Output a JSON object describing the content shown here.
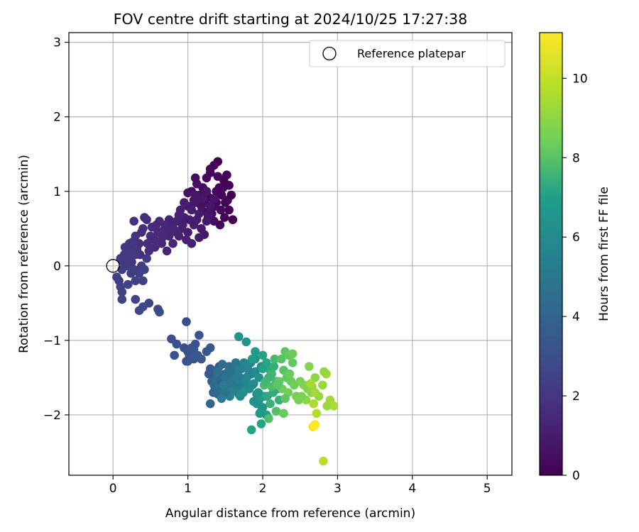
{
  "chart_data": {
    "type": "scatter",
    "title": "FOV centre drift starting at 2024/10/25 17:27:38",
    "xlabel": "Angular distance from reference (arcmin)",
    "ylabel": "Rotation from reference (arcmin)",
    "xlim": [
      -0.59,
      5.33
    ],
    "ylim": [
      -2.81,
      3.13
    ],
    "xticks": [
      0,
      1,
      2,
      3,
      4,
      5
    ],
    "yticks": [
      -2,
      -1,
      0,
      1,
      2,
      3
    ],
    "xtick_labels": [
      "0",
      "1",
      "2",
      "3",
      "4",
      "5"
    ],
    "ytick_labels": [
      "−2",
      "−1",
      "0",
      "1",
      "2",
      "3"
    ],
    "grid": true,
    "legend": {
      "placement": "top-right",
      "entries": [
        {
          "label": "Reference platepar",
          "marker": "open-circle"
        }
      ]
    },
    "reference_point": {
      "x": 0,
      "y": 0
    },
    "colorbar": {
      "label": "Hours from first FF file",
      "colormap": "viridis",
      "range": [
        0,
        11.15
      ],
      "ticks": [
        0,
        2,
        4,
        6,
        8,
        10
      ],
      "tick_labels": [
        "0",
        "2",
        "4",
        "6",
        "8",
        "10"
      ]
    },
    "series": [
      {
        "x": [
          1.4,
          1.35,
          1.52,
          1.48,
          1.3,
          1.42,
          1.55,
          1.38,
          1.25,
          1.45,
          1.33,
          1.5,
          1.58,
          1.28,
          1.36,
          1.44,
          1.49,
          1.32,
          1.2,
          1.1,
          1.05,
          1.15,
          1.22,
          1.55,
          1.6,
          1.25,
          1.18,
          1.3,
          1.4,
          1.47,
          1.12,
          1.0,
          1.08,
          1.35,
          1.43,
          1.53,
          1.27,
          1.38
        ],
        "y": [
          1.4,
          1.35,
          1.22,
          1.15,
          1.25,
          1.05,
          1.08,
          1.0,
          1.18,
          0.95,
          0.9,
          0.85,
          0.95,
          0.92,
          0.8,
          0.75,
          0.65,
          0.7,
          1.05,
          1.18,
          1.0,
          0.95,
          0.85,
          0.75,
          0.62,
          0.72,
          0.8,
          1.3,
          1.2,
          1.05,
          1.1,
          0.98,
          0.88,
          0.6,
          0.55,
          0.88,
          0.65,
          0.85
        ],
        "c": [
          0.05,
          0.1,
          0.08,
          0.15,
          0.2,
          0.12,
          0.18,
          0.25,
          0.3,
          0.22,
          0.28,
          0.14,
          0.06,
          0.35,
          0.4,
          0.32,
          0.24,
          0.45,
          0.38,
          0.42,
          0.5,
          0.55,
          0.48,
          0.16,
          0.09,
          0.52,
          0.58,
          0.26,
          0.33,
          0.21,
          0.6,
          0.65,
          0.62,
          0.44,
          0.36,
          0.11,
          0.46,
          0.3
        ]
      },
      {
        "x": [
          1.2,
          1.1,
          1.0,
          1.15,
          1.05,
          0.95,
          1.25,
          1.3,
          0.9,
          0.85,
          1.08,
          1.18,
          1.22,
          1.0,
          0.92,
          0.88,
          0.8,
          1.12,
          1.28,
          1.02,
          0.98,
          1.35,
          0.95,
          1.05,
          0.75,
          0.82,
          1.15,
          1.25,
          0.88,
          0.7,
          1.1,
          0.93
        ],
        "y": [
          0.9,
          0.85,
          0.8,
          0.7,
          0.75,
          0.65,
          0.6,
          0.8,
          0.75,
          0.6,
          0.55,
          0.5,
          0.42,
          0.45,
          0.5,
          0.4,
          0.55,
          0.62,
          0.7,
          0.62,
          0.35,
          0.9,
          0.85,
          0.3,
          0.62,
          0.48,
          0.38,
          1.0,
          0.68,
          0.5,
          0.95,
          0.55
        ],
        "c": [
          0.8,
          0.85,
          0.9,
          0.95,
          1.0,
          1.05,
          0.88,
          0.78,
          1.1,
          1.15,
          1.02,
          0.92,
          0.86,
          1.08,
          1.12,
          1.18,
          1.22,
          0.98,
          0.82,
          1.06,
          1.2,
          0.72,
          1.14,
          1.16,
          1.25,
          1.28,
          0.96,
          0.76,
          1.24,
          1.3,
          0.84,
          1.1
        ]
      },
      {
        "x": [
          0.7,
          0.6,
          0.5,
          0.4,
          0.3,
          0.45,
          0.55,
          0.65,
          0.75,
          0.35,
          0.25,
          0.48,
          0.58,
          0.68,
          0.38,
          0.28,
          0.8,
          0.72,
          0.62,
          0.52,
          0.42,
          0.32,
          0.85,
          0.22,
          0.18,
          0.78,
          0.66,
          0.56,
          0.46,
          0.36
        ],
        "y": [
          0.55,
          0.45,
          0.4,
          0.5,
          0.4,
          0.62,
          0.35,
          0.3,
          0.4,
          0.3,
          0.25,
          0.2,
          0.55,
          0.48,
          0.45,
          0.6,
          0.3,
          0.2,
          0.6,
          0.52,
          0.65,
          0.25,
          0.45,
          0.3,
          0.2,
          0.5,
          0.38,
          0.25,
          0.3,
          0.15
        ],
        "c": [
          1.4,
          1.5,
          1.6,
          1.7,
          1.8,
          1.65,
          1.55,
          1.45,
          1.35,
          1.75,
          1.85,
          1.62,
          1.52,
          1.42,
          1.72,
          1.82,
          1.32,
          1.38,
          1.48,
          1.58,
          1.68,
          1.78,
          1.3,
          1.88,
          1.92,
          1.36,
          1.46,
          1.56,
          1.66,
          1.76
        ]
      },
      {
        "x": [
          0.2,
          0.15,
          0.1,
          0.25,
          0.3,
          0.12,
          0.18,
          0.35,
          0.22,
          0.08,
          0.28,
          0.05,
          0.4,
          0.14,
          0.24,
          0.32,
          0.45,
          0.1,
          0.16,
          0.26,
          0.2,
          0.38,
          0.3,
          0.12,
          0.42,
          0.22
        ],
        "y": [
          0.2,
          0.15,
          0.1,
          0.05,
          0.15,
          -0.05,
          0.0,
          -0.1,
          0.1,
          -0.2,
          -0.05,
          -0.15,
          -0.2,
          0.05,
          -0.1,
          0.22,
          0.1,
          -0.28,
          0.25,
          0.32,
          -0.25,
          0.0,
          -0.2,
          -0.35,
          -0.05,
          0.3
        ],
        "c": [
          2.0,
          2.1,
          2.2,
          2.05,
          2.15,
          2.25,
          2.18,
          2.35,
          2.08,
          2.3,
          2.28,
          2.32,
          2.4,
          2.12,
          2.22,
          2.02,
          2.2,
          2.38,
          1.98,
          1.95,
          2.42,
          2.26,
          2.44,
          2.46,
          2.34,
          2.0
        ]
      },
      {
        "x": [
          0.12,
          0.48,
          0.3,
          0.4,
          0.6,
          0.62,
          0.35
        ],
        "y": [
          -0.45,
          -0.5,
          -0.45,
          -0.55,
          -0.58,
          -0.62,
          -0.6
        ],
        "c": [
          2.5,
          2.6,
          2.55,
          2.7,
          2.8,
          2.85,
          2.75
        ]
      },
      {
        "x": [
          0.98,
          0.78,
          0.85,
          0.82,
          0.95,
          1.05,
          1.0,
          1.1,
          1.15,
          1.02,
          0.98,
          1.08,
          1.13,
          1.18,
          1.25,
          1.3,
          1.0,
          1.08
        ],
        "y": [
          -0.75,
          -0.98,
          -1.05,
          -1.2,
          -1.1,
          -1.1,
          -1.15,
          -1.05,
          -0.93,
          -1.2,
          -1.28,
          -1.12,
          -1.2,
          -1.25,
          -1.15,
          -1.1,
          -1.28,
          -1.25
        ],
        "c": [
          2.95,
          3.0,
          3.05,
          3.1,
          3.12,
          3.18,
          3.15,
          3.22,
          3.25,
          3.2,
          3.28,
          3.3,
          3.35,
          3.38,
          3.4,
          3.45,
          3.32,
          3.42
        ]
      },
      {
        "x": [
          1.3,
          1.35,
          1.4,
          1.45,
          1.38,
          1.32,
          1.5,
          1.42,
          1.28,
          1.36,
          1.48,
          1.34,
          1.3,
          1.4,
          1.44,
          1.55,
          1.38,
          1.46,
          1.52,
          1.42,
          1.35,
          1.4
        ],
        "y": [
          -1.38,
          -1.45,
          -1.55,
          -1.48,
          -1.4,
          -1.55,
          -1.45,
          -1.35,
          -1.45,
          -1.62,
          -1.6,
          -1.7,
          -1.85,
          -1.72,
          -1.65,
          -1.52,
          -1.5,
          -1.32,
          -1.58,
          -1.68,
          -1.6,
          -1.42
        ],
        "c": [
          3.5,
          3.55,
          3.6,
          3.65,
          3.7,
          3.75,
          3.8,
          3.85,
          3.58,
          3.9,
          3.95,
          4.0,
          4.05,
          4.1,
          4.15,
          4.2,
          4.25,
          4.3,
          4.35,
          4.4,
          4.45,
          4.5
        ]
      },
      {
        "x": [
          1.55,
          1.6,
          1.5,
          1.65,
          1.58,
          1.62,
          1.52,
          1.7,
          1.48,
          1.56,
          1.6,
          1.66,
          1.54,
          1.5,
          1.64,
          1.58,
          1.68,
          1.45,
          1.72
        ],
        "y": [
          -1.35,
          -1.45,
          -1.5,
          -1.4,
          -1.6,
          -1.55,
          -1.65,
          -1.5,
          -1.6,
          -1.75,
          -1.68,
          -1.6,
          -1.42,
          -1.7,
          -1.3,
          -1.52,
          -1.72,
          -1.78,
          -1.38
        ],
        "c": [
          4.5,
          4.6,
          4.7,
          4.8,
          4.9,
          5.0,
          5.1,
          5.2,
          5.3,
          5.4,
          5.5,
          4.55,
          4.65,
          4.75,
          4.85,
          4.95,
          5.05,
          5.15,
          5.25
        ]
      },
      {
        "x": [
          1.65,
          1.75,
          1.8,
          1.85,
          1.9,
          1.78,
          1.7,
          1.82,
          1.88,
          1.95,
          1.72,
          1.76,
          1.92,
          1.68,
          1.84,
          1.98,
          1.8,
          1.74,
          1.86,
          1.9,
          1.7,
          1.66
        ],
        "y": [
          -1.5,
          -1.3,
          -1.38,
          -1.45,
          -1.42,
          -1.55,
          -1.75,
          -1.65,
          -1.58,
          -1.5,
          -1.68,
          -1.6,
          -1.72,
          -1.4,
          -1.3,
          -1.35,
          -1.48,
          -1.7,
          -1.6,
          -1.25,
          -1.58,
          -1.62
        ],
        "c": [
          5.3,
          5.5,
          5.6,
          5.7,
          5.8,
          5.9,
          6.0,
          6.1,
          6.2,
          6.3,
          5.4,
          5.65,
          5.85,
          5.35,
          5.75,
          6.05,
          5.55,
          6.15,
          5.95,
          6.25,
          5.45,
          5.2
        ]
      },
      {
        "x": [
          1.68,
          1.78,
          1.9,
          1.86,
          1.95,
          1.98,
          2.0,
          2.05,
          1.92,
          1.96,
          2.02,
          1.88,
          1.94,
          1.85
        ],
        "y": [
          -0.95,
          -1.02,
          -1.15,
          -1.25,
          -1.8,
          -1.95,
          -1.9,
          -2.0,
          -1.85,
          -1.98,
          -1.75,
          -1.82,
          -1.7,
          -2.2
        ],
        "c": [
          6.4,
          6.6,
          6.8,
          6.9,
          6.5,
          6.7,
          6.6,
          7.0,
          6.55,
          6.75,
          6.85,
          6.45,
          6.65,
          7.1
        ]
      },
      {
        "x": [
          2.0,
          2.05,
          2.1,
          2.15,
          2.08,
          2.12,
          2.18,
          2.02,
          2.2,
          2.06,
          2.14,
          2.22,
          2.1,
          2.04,
          2.16,
          2.0,
          2.12,
          2.08,
          2.18,
          1.98
        ],
        "y": [
          -1.2,
          -1.3,
          -1.4,
          -1.35,
          -1.5,
          -1.45,
          -1.55,
          -1.6,
          -1.65,
          -1.75,
          -1.7,
          -1.8,
          -1.85,
          -1.55,
          -1.25,
          -1.38,
          -1.62,
          -2.05,
          -1.95,
          -2.12
        ],
        "c": [
          7.1,
          7.2,
          7.3,
          7.4,
          7.5,
          7.6,
          7.7,
          7.8,
          7.15,
          7.25,
          7.35,
          7.45,
          7.55,
          7.65,
          7.75,
          7.05,
          7.85,
          7.9,
          7.95,
          7.12
        ]
      },
      {
        "x": [
          2.25,
          2.3,
          2.35,
          2.4,
          2.28,
          2.32,
          2.38,
          2.42,
          2.26,
          2.34,
          2.45,
          2.3,
          2.22,
          2.36,
          2.48,
          2.4,
          2.2,
          2.28
        ],
        "y": [
          -1.25,
          -1.15,
          -1.2,
          -1.18,
          -1.4,
          -1.5,
          -1.55,
          -1.6,
          -1.65,
          -1.7,
          -1.75,
          -1.78,
          -1.55,
          -1.45,
          -1.8,
          -1.3,
          -1.6,
          -1.98
        ],
        "c": [
          8.0,
          8.1,
          8.2,
          8.3,
          8.05,
          8.15,
          8.25,
          8.35,
          8.4,
          8.45,
          8.5,
          8.12,
          8.22,
          8.32,
          8.55,
          8.18,
          8.08,
          8.28
        ]
      },
      {
        "x": [
          2.5,
          2.55,
          2.6,
          2.65,
          2.7,
          2.75,
          2.8,
          2.85,
          2.9,
          2.95,
          2.62,
          2.68,
          2.72,
          2.58,
          2.66,
          2.82,
          2.86,
          2.7,
          2.64,
          2.52
        ],
        "y": [
          -1.55,
          -1.6,
          -1.65,
          -1.7,
          -1.5,
          -1.75,
          -1.6,
          -1.45,
          -1.8,
          -1.88,
          -1.35,
          -1.85,
          -1.98,
          -1.8,
          -1.62,
          -1.42,
          -1.88,
          -1.7,
          -1.58,
          -1.75
        ],
        "c": [
          8.6,
          8.7,
          8.8,
          8.9,
          9.0,
          9.1,
          9.2,
          9.3,
          9.4,
          9.5,
          8.85,
          9.6,
          9.7,
          8.95,
          9.05,
          9.15,
          9.25,
          9.35,
          9.45,
          8.65
        ]
      },
      {
        "x": [
          2.67,
          2.7,
          2.69,
          2.81
        ],
        "y": [
          -2.16,
          -2.13,
          -2.15,
          -2.62
        ],
        "c": [
          10.8,
          11.0,
          11.1,
          9.8
        ]
      }
    ]
  }
}
